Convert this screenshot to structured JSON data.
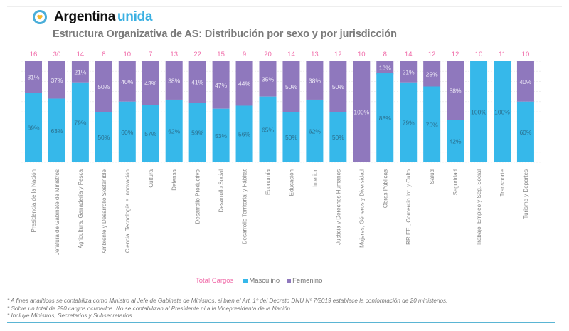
{
  "header": {
    "brand_main": "Argentina",
    "brand_accent": "unida",
    "subtitle": "Estructura Organizativa de AS: Distribución por sexo y por jurisdicción"
  },
  "colors": {
    "masculino": "#36b8ea",
    "femenino": "#8f78bd",
    "total": "#f06aa8",
    "grid": "#e6e6e6"
  },
  "chart_data": {
    "type": "bar",
    "stacked": true,
    "percent": true,
    "title": "Estructura Organizativa de AS: Distribución por sexo y por jurisdicción",
    "xlabel": "",
    "ylabel": "",
    "ylim": [
      0,
      100
    ],
    "grid": true,
    "legend_position": "bottom-center",
    "categories": [
      "Presidencia de la Nación",
      "Jefatura de Gabinete de Ministros",
      "Agricultura, Ganadería y Pesca",
      "Ambiente y Desarrollo Sostenible",
      "Ciencia, Tecnología e Innovación",
      "Cultura",
      "Defensa",
      "Desarrollo Productivo",
      "Desarrollo Social",
      "Desarrollo Territorial y Hábitat",
      "Economía",
      "Educación",
      "Interior",
      "Justicia y Derechos Humanos",
      "Mujeres, Géneros y Diversidad",
      "Obras Públicas",
      "RR.EE., Comercio Int. y Culto",
      "Salud",
      "Seguridad",
      "Trabajo, Empleo y Seg. Social",
      "Transporte",
      "Turismo y Deportes"
    ],
    "series": [
      {
        "name": "Masculino",
        "values": [
          69,
          63,
          79,
          50,
          60,
          57,
          62,
          59,
          53,
          56,
          65,
          50,
          62,
          50,
          0,
          88,
          79,
          75,
          42,
          100,
          100,
          60
        ]
      },
      {
        "name": "Femenino",
        "values": [
          31,
          37,
          21,
          50,
          40,
          43,
          38,
          41,
          47,
          44,
          35,
          50,
          38,
          50,
          100,
          13,
          21,
          25,
          58,
          0,
          0,
          40
        ]
      }
    ],
    "totals": {
      "name": "Total Cargos",
      "values": [
        16,
        30,
        14,
        8,
        10,
        7,
        13,
        22,
        15,
        9,
        20,
        14,
        13,
        12,
        10,
        8,
        14,
        12,
        12,
        10,
        11,
        10
      ]
    }
  },
  "legend": {
    "total_label": "Total Cargos",
    "masculino_label": "Masculino",
    "femenino_label": "Femenino"
  },
  "footnotes": [
    "* A fines analíticos se contabiliza como Ministro al Jefe de Gabinete de Ministros, si bien el Art. 1º del Decreto DNU Nº 7/2019 establece la conformación de 20 ministerios.",
    "* Sobre un total de 290 cargos ocupados. No se contabilizan al Presidente ni a la Vicepresidenta de la Nación.",
    "* Incluye Ministros, Secretarios y Subsecretarios."
  ]
}
